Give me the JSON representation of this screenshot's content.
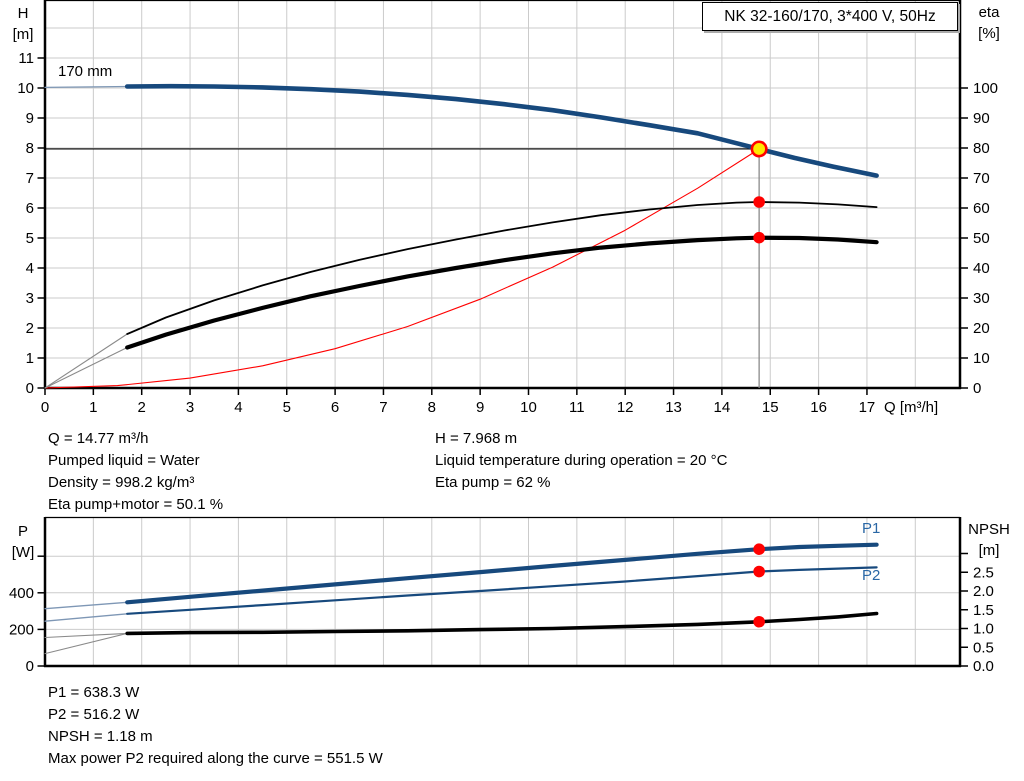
{
  "title_box": "NK 32-160/170, 3*400 V, 50Hz",
  "colors": {
    "curve_blue": "#17497D",
    "label_blue": "#2A67A5",
    "red": "#FF0000",
    "yellow": "#FFE800",
    "grid": "#CBCBCB",
    "lead_gray": "#8A8A8A",
    "lead_blue": "#7E97B5",
    "axis": "#000000",
    "op_line_gray": "#8A8A8A"
  },
  "main_chart": {
    "y_left_label": [
      "H",
      "[m]"
    ],
    "y_right_label": [
      "eta",
      "[%]"
    ],
    "x_label": "Q [m³/h]",
    "curve_label": "170 mm"
  },
  "lower_chart": {
    "y_left_label": [
      "P",
      "[W]"
    ],
    "y_right_label": [
      "NPSH",
      "[m]"
    ],
    "p1_label": "P1",
    "p2_label": "P2"
  },
  "info_top": {
    "left": [
      "Q = 14.77 m³/h",
      "Pumped liquid = Water",
      "Density = 998.2 kg/m³",
      "Eta pump+motor = 50.1 %"
    ],
    "right": [
      "H = 7.968 m",
      "Liquid temperature during operation = 20 °C",
      "Eta pump = 62 %"
    ]
  },
  "info_bottom": [
    "P1 = 638.3 W",
    "P2 = 516.2 W",
    "NPSH = 1.18 m",
    "Max power P2 required along the curve = 551.5 W"
  ],
  "chart_data": [
    {
      "type": "line",
      "title": "QH and efficiency curves",
      "x": {
        "label": "Q [m³/h]",
        "min": 0,
        "max": 18.93,
        "ticks": [
          0,
          1,
          2,
          3,
          4,
          5,
          6,
          7,
          8,
          9,
          10,
          11,
          12,
          13,
          14,
          15,
          16,
          17
        ]
      },
      "y_left": {
        "label": "H [m]",
        "min": 0,
        "max": 12.9,
        "ticks": [
          0,
          1,
          2,
          3,
          4,
          5,
          6,
          7,
          8,
          9,
          10,
          11
        ]
      },
      "y_right": {
        "label": "eta [%]",
        "min": 0,
        "max": 129,
        "ticks": [
          0,
          10,
          20,
          30,
          40,
          50,
          60,
          70,
          80,
          90,
          100
        ]
      },
      "series": [
        {
          "name": "head-170mm-leadin",
          "axis": "H",
          "role": "leadin",
          "points": [
            [
              0,
              10.02
            ],
            [
              1.7,
              10.05
            ]
          ]
        },
        {
          "name": "head-170mm",
          "axis": "H",
          "label": "170 mm",
          "points": [
            [
              1.7,
              10.05
            ],
            [
              2.6,
              10.06
            ],
            [
              3.5,
              10.05
            ],
            [
              4.5,
              10.02
            ],
            [
              5.5,
              9.96
            ],
            [
              6.5,
              9.88
            ],
            [
              7.5,
              9.77
            ],
            [
              8.5,
              9.63
            ],
            [
              9.5,
              9.46
            ],
            [
              10.5,
              9.26
            ],
            [
              11.5,
              9.02
            ],
            [
              12.5,
              8.76
            ],
            [
              13.5,
              8.49
            ],
            [
              14.3,
              8.16
            ],
            [
              14.77,
              7.968
            ],
            [
              15.5,
              7.67
            ],
            [
              16.3,
              7.38
            ],
            [
              17.2,
              7.08
            ]
          ]
        },
        {
          "name": "system-curve",
          "axis": "H",
          "points": [
            [
              0,
              0
            ],
            [
              1.5,
              0.08
            ],
            [
              3,
              0.33
            ],
            [
              4.5,
              0.74
            ],
            [
              6,
              1.31
            ],
            [
              7.5,
              2.05
            ],
            [
              9,
              2.96
            ],
            [
              10.5,
              4.03
            ],
            [
              12,
              5.26
            ],
            [
              13.5,
              6.66
            ],
            [
              14.77,
              7.968
            ]
          ]
        },
        {
          "name": "eta-pump-leadin",
          "axis": "eta",
          "role": "leadin",
          "points": [
            [
              0,
              0
            ],
            [
              1.7,
              18
            ]
          ]
        },
        {
          "name": "eta-pump",
          "axis": "eta",
          "points": [
            [
              1.7,
              18
            ],
            [
              2.5,
              23.5
            ],
            [
              3.5,
              29.2
            ],
            [
              4.5,
              34.2
            ],
            [
              5.5,
              38.7
            ],
            [
              6.5,
              42.7
            ],
            [
              7.5,
              46.3
            ],
            [
              8.5,
              49.5
            ],
            [
              9.5,
              52.5
            ],
            [
              10.5,
              55.2
            ],
            [
              11.5,
              57.6
            ],
            [
              12.5,
              59.5
            ],
            [
              13.5,
              61
            ],
            [
              14.3,
              61.8
            ],
            [
              14.77,
              62
            ],
            [
              15.6,
              61.8
            ],
            [
              16.4,
              61.2
            ],
            [
              17.2,
              60.3
            ]
          ]
        },
        {
          "name": "eta-pump-motor-leadin",
          "axis": "eta",
          "role": "leadin",
          "points": [
            [
              0,
              0
            ],
            [
              1.7,
              13.5
            ]
          ]
        },
        {
          "name": "eta-pump-motor",
          "axis": "eta",
          "points": [
            [
              1.7,
              13.5
            ],
            [
              2.5,
              17.8
            ],
            [
              3.5,
              22.5
            ],
            [
              4.5,
              26.7
            ],
            [
              5.5,
              30.6
            ],
            [
              6.5,
              34
            ],
            [
              7.5,
              37.2
            ],
            [
              8.5,
              40
            ],
            [
              9.5,
              42.6
            ],
            [
              10.5,
              44.9
            ],
            [
              11.5,
              46.8
            ],
            [
              12.5,
              48.2
            ],
            [
              13.5,
              49.3
            ],
            [
              14.3,
              49.9
            ],
            [
              14.77,
              50.1
            ],
            [
              15.6,
              50
            ],
            [
              16.4,
              49.5
            ],
            [
              17.2,
              48.6
            ]
          ]
        }
      ],
      "markers": [
        {
          "name": "operating-point",
          "axis": "H",
          "q": 14.77,
          "value": 7.968,
          "style": "duty"
        },
        {
          "name": "eta-pump-point",
          "axis": "eta",
          "q": 14.77,
          "value": 62,
          "style": "dot"
        },
        {
          "name": "eta-pump-motor-point",
          "axis": "eta",
          "q": 14.77,
          "value": 50.1,
          "style": "dot"
        }
      ],
      "reference_lines": {
        "h_value": 7.968,
        "v_q": 14.77
      }
    },
    {
      "type": "line",
      "title": "Power and NPSH curves",
      "x": {
        "label": "Q [m³/h]",
        "min": 0,
        "max": 18.93,
        "ticks": []
      },
      "y_left": {
        "label": "P [W]",
        "min": 0,
        "max": 809,
        "ticks": [
          0,
          200,
          400
        ]
      },
      "y_right": {
        "label": "NPSH [m]",
        "min": 0,
        "max": 3.95,
        "ticks": [
          "0.0",
          "0.5",
          "1.0",
          "1.5",
          "2.0",
          "2.5"
        ]
      },
      "series": [
        {
          "name": "p1-leadin",
          "axis": "P",
          "role": "leadin",
          "points": [
            [
              0,
              313
            ],
            [
              1.7,
              348
            ]
          ]
        },
        {
          "name": "p1",
          "axis": "P",
          "label": "P1",
          "points": [
            [
              1.7,
              348
            ],
            [
              3,
              378
            ],
            [
              4.5,
              412
            ],
            [
              6,
              446
            ],
            [
              7.5,
              480
            ],
            [
              9,
              513
            ],
            [
              10.5,
              547
            ],
            [
              12,
              580
            ],
            [
              13.5,
              613
            ],
            [
              14.77,
              638.3
            ],
            [
              15.6,
              650
            ],
            [
              16.4,
              657
            ],
            [
              17.2,
              663
            ]
          ]
        },
        {
          "name": "p2-leadin",
          "axis": "P",
          "role": "leadin",
          "points": [
            [
              0,
              245
            ],
            [
              1.7,
              285
            ]
          ]
        },
        {
          "name": "p2",
          "axis": "P",
          "label": "P2",
          "points": [
            [
              1.7,
              285
            ],
            [
              3,
              307
            ],
            [
              4.5,
              333
            ],
            [
              6,
              359
            ],
            [
              7.5,
              385
            ],
            [
              9,
              410
            ],
            [
              10.5,
              436
            ],
            [
              12,
              462
            ],
            [
              13.5,
              491
            ],
            [
              14.77,
              516.2
            ],
            [
              15.6,
              525
            ],
            [
              16.4,
              532
            ],
            [
              17.2,
              539
            ]
          ]
        },
        {
          "name": "npsh-leadin",
          "axis": "NPSH",
          "role": "leadin",
          "points": [
            [
              0,
              0.76
            ],
            [
              1.7,
              0.87
            ]
          ]
        },
        {
          "name": "npsh-leadin2",
          "axis": "NPSH",
          "role": "leadin",
          "points": [
            [
              0,
              0.33
            ],
            [
              1.7,
              0.87
            ]
          ]
        },
        {
          "name": "npsh",
          "axis": "NPSH",
          "points": [
            [
              1.7,
              0.87
            ],
            [
              3,
              0.89
            ],
            [
              4.5,
              0.9
            ],
            [
              6,
              0.92
            ],
            [
              7.5,
              0.94
            ],
            [
              9,
              0.97
            ],
            [
              10.5,
              1.0
            ],
            [
              12,
              1.05
            ],
            [
              13.5,
              1.11
            ],
            [
              14.77,
              1.18
            ],
            [
              15.6,
              1.24
            ],
            [
              16.4,
              1.31
            ],
            [
              17.2,
              1.4
            ]
          ]
        }
      ],
      "markers": [
        {
          "name": "p1-point",
          "axis": "P",
          "q": 14.77,
          "value": 638.3,
          "style": "dot"
        },
        {
          "name": "p2-point",
          "axis": "P",
          "q": 14.77,
          "value": 516.2,
          "style": "dot"
        },
        {
          "name": "npsh-point",
          "axis": "NPSH",
          "q": 14.77,
          "value": 1.18,
          "style": "dot"
        }
      ],
      "reference_lines": {}
    }
  ]
}
